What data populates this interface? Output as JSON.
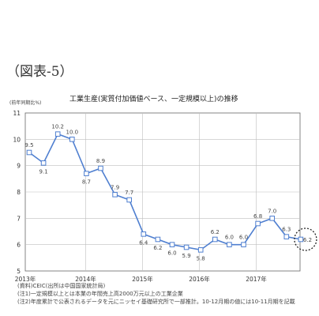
{
  "figure_label": "（図表-5）",
  "chart_data": {
    "type": "line",
    "title": "工業生産(実質付加価値ベース、一定規模以上)の推移",
    "ylabel": "(前年同期比%)",
    "ylim": [
      5,
      11
    ],
    "y_ticks": [
      "5",
      "6",
      "7",
      "8",
      "9",
      "10",
      "11"
    ],
    "x_tick_labels": [
      "2013年",
      "2014年",
      "2015年",
      "2016年",
      "2017年"
    ],
    "grid": true,
    "series": [
      {
        "points": [
          {
            "x": "2013-Q1",
            "y": 9.5
          },
          {
            "x": "2013-Q2",
            "y": 9.1
          },
          {
            "x": "2013-Q3",
            "y": 10.2
          },
          {
            "x": "2013-Q4",
            "y": 10.0
          },
          {
            "x": "2014-Q1",
            "y": 8.7
          },
          {
            "x": "2014-Q2",
            "y": 8.9
          },
          {
            "x": "2014-Q3",
            "y": 7.9
          },
          {
            "x": "2014-Q4",
            "y": 7.7
          },
          {
            "x": "2015-Q1",
            "y": 6.4
          },
          {
            "x": "2015-Q2",
            "y": 6.2
          },
          {
            "x": "2015-Q3",
            "y": 6.0
          },
          {
            "x": "2015-Q4",
            "y": 5.9
          },
          {
            "x": "2016-Q1",
            "y": 5.8
          },
          {
            "x": "2016-Q2",
            "y": 6.2
          },
          {
            "x": "2016-Q3",
            "y": 6.0
          },
          {
            "x": "2016-Q4",
            "y": 6.0
          },
          {
            "x": "2017-Q1",
            "y": 6.8
          },
          {
            "x": "2017-Q2",
            "y": 7.0
          },
          {
            "x": "2017-Q3",
            "y": 6.3
          },
          {
            "x": "2017-Q4",
            "y": 6.2
          }
        ],
        "labels": [
          "9.5",
          "9.1",
          "10.2",
          "10.0",
          "8.7",
          "8.9",
          "7.9",
          "7.7",
          "6.4",
          "6.2",
          "6.0",
          "5.9",
          "5.8",
          "6.2",
          "6.0",
          "6.0",
          "6.8",
          "7.0",
          "6.3",
          "6.2"
        ]
      }
    ],
    "highlight_last_point": true,
    "colors": {
      "line": "#4f7fd0",
      "marker_fill": "#ffffff",
      "grid": "#bfbfbf",
      "axis": "#555555"
    }
  },
  "notes": [
    "(資料)CEIC(出所は中国国家統計局)",
    "(注1)一定規模以上とは本業の年間売上高2000万元以上の工業企業",
    "(注2)年度累計で公表されるデータを元にニッセイ基礎研究所で一部推計。10-12月期の値には10-11月期を記載"
  ]
}
